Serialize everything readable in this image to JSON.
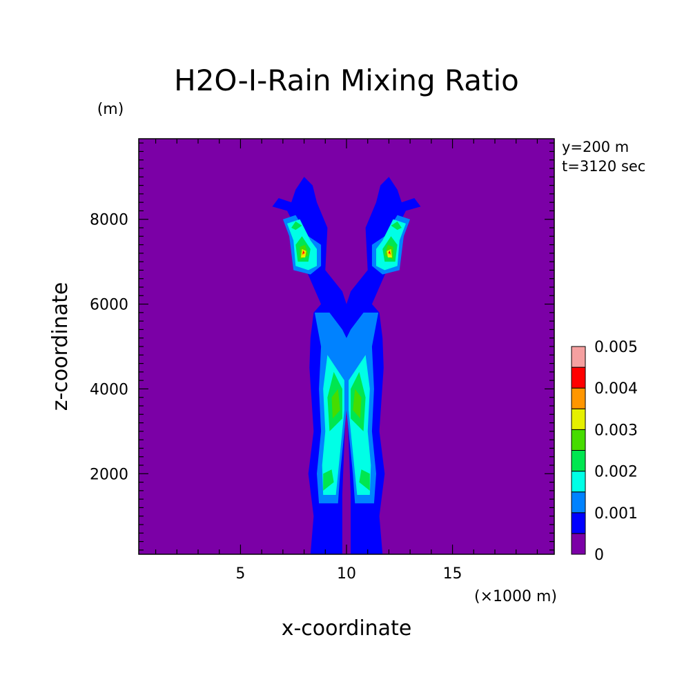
{
  "chart_data": {
    "type": "heatmap",
    "title": "H2O-I-Rain Mixing Ratio",
    "ylabel": "z-coordinate",
    "yunit": "(m)",
    "xlabel": "x-coordinate",
    "xunit": "(×1000 m)",
    "annotations": [
      "y=200 m",
      "t=3120 sec"
    ],
    "xlim": [
      0.2,
      19.8
    ],
    "ylim": [
      100,
      9900
    ],
    "xticks": [
      {
        "value": 5,
        "label": "5"
      },
      {
        "value": 10,
        "label": "10"
      },
      {
        "value": 15,
        "label": "15"
      }
    ],
    "yticks": [
      {
        "value": 2000,
        "label": "2000"
      },
      {
        "value": 4000,
        "label": "4000"
      },
      {
        "value": 6000,
        "label": "6000"
      },
      {
        "value": 8000,
        "label": "8000"
      }
    ],
    "colorbar": {
      "levels": [
        0,
        0.0005,
        0.001,
        0.0015,
        0.002,
        0.0025,
        0.003,
        0.0035,
        0.004,
        0.0045,
        0.005
      ],
      "colors": [
        "#7b00a6",
        "#0000ff",
        "#0082ff",
        "#00ffe6",
        "#00e650",
        "#46dc00",
        "#e6f000",
        "#ff9600",
        "#ff0000",
        "#f5a0a0"
      ],
      "tick_labels": [
        {
          "value": 0,
          "label": "0"
        },
        {
          "value": 0.001,
          "label": "0.001"
        },
        {
          "value": 0.002,
          "label": "0.002"
        },
        {
          "value": 0.003,
          "label": "0.003"
        },
        {
          "value": 0.004,
          "label": "0.004"
        },
        {
          "value": 0.005,
          "label": "0.005"
        }
      ]
    },
    "background_value": 0,
    "regions": [
      {
        "level": 0.0005,
        "points": [
          [
            9.8,
            100
          ],
          [
            8.3,
            100
          ],
          [
            8.45,
            1000
          ],
          [
            8.2,
            2000
          ],
          [
            8.45,
            3000
          ],
          [
            8.25,
            4500
          ],
          [
            8.3,
            5200
          ],
          [
            8.45,
            5800
          ],
          [
            8.8,
            6000
          ],
          [
            8.1,
            6800
          ],
          [
            7.7,
            7700
          ],
          [
            7.2,
            8200
          ],
          [
            6.5,
            8300
          ],
          [
            6.8,
            8500
          ],
          [
            7.4,
            8400
          ],
          [
            7.6,
            8700
          ],
          [
            8.0,
            9000
          ],
          [
            8.4,
            8800
          ],
          [
            8.6,
            8400
          ],
          [
            9.1,
            7800
          ],
          [
            9.0,
            6800
          ],
          [
            9.8,
            6300
          ],
          [
            10.0,
            6000
          ],
          [
            10.0,
            4000
          ],
          [
            9.8,
            1500
          ]
        ]
      },
      {
        "level": 0.0005,
        "points": [
          [
            10.2,
            100
          ],
          [
            11.7,
            100
          ],
          [
            11.55,
            1000
          ],
          [
            11.8,
            2000
          ],
          [
            11.55,
            3000
          ],
          [
            11.75,
            4500
          ],
          [
            11.7,
            5200
          ],
          [
            11.55,
            5800
          ],
          [
            11.2,
            6000
          ],
          [
            11.9,
            6800
          ],
          [
            12.3,
            7700
          ],
          [
            12.8,
            8200
          ],
          [
            13.5,
            8300
          ],
          [
            13.2,
            8500
          ],
          [
            12.6,
            8400
          ],
          [
            12.4,
            8700
          ],
          [
            12.0,
            9000
          ],
          [
            11.6,
            8800
          ],
          [
            11.4,
            8400
          ],
          [
            10.9,
            7800
          ],
          [
            11.0,
            6800
          ],
          [
            10.2,
            6300
          ],
          [
            10.0,
            6000
          ],
          [
            10.0,
            4000
          ],
          [
            10.2,
            1500
          ]
        ]
      },
      {
        "level": 0.001,
        "points": [
          [
            9.6,
            1300
          ],
          [
            8.7,
            1300
          ],
          [
            8.6,
            2000
          ],
          [
            8.8,
            3000
          ],
          [
            8.7,
            4000
          ],
          [
            8.8,
            5000
          ],
          [
            8.5,
            5800
          ],
          [
            9.2,
            5800
          ],
          [
            9.8,
            5400
          ],
          [
            10.0,
            5200
          ],
          [
            10.0,
            3500
          ],
          [
            9.7,
            2000
          ]
        ]
      },
      {
        "level": 0.001,
        "points": [
          [
            10.4,
            1300
          ],
          [
            11.3,
            1300
          ],
          [
            11.4,
            2000
          ],
          [
            11.2,
            3000
          ],
          [
            11.3,
            4000
          ],
          [
            11.2,
            5000
          ],
          [
            11.5,
            5800
          ],
          [
            10.8,
            5800
          ],
          [
            10.2,
            5400
          ],
          [
            10.0,
            5200
          ],
          [
            10.0,
            3500
          ],
          [
            10.3,
            2000
          ]
        ]
      },
      {
        "level": 0.001,
        "points": [
          [
            7.5,
            6800
          ],
          [
            7.3,
            7600
          ],
          [
            7.0,
            8000
          ],
          [
            7.6,
            8100
          ],
          [
            8.2,
            7600
          ],
          [
            8.8,
            7400
          ],
          [
            8.8,
            6900
          ],
          [
            8.3,
            6700
          ]
        ]
      },
      {
        "level": 0.001,
        "points": [
          [
            12.5,
            6800
          ],
          [
            12.7,
            7600
          ],
          [
            13.0,
            8000
          ],
          [
            12.4,
            8100
          ],
          [
            11.8,
            7600
          ],
          [
            11.2,
            7400
          ],
          [
            11.2,
            6900
          ],
          [
            11.7,
            6700
          ]
        ]
      },
      {
        "level": 0.0015,
        "points": [
          [
            9.5,
            1500
          ],
          [
            8.9,
            1500
          ],
          [
            8.85,
            2200
          ],
          [
            9.0,
            3000
          ],
          [
            8.9,
            4000
          ],
          [
            9.1,
            4800
          ],
          [
            9.9,
            4200
          ],
          [
            9.9,
            3500
          ],
          [
            9.6,
            2000
          ]
        ]
      },
      {
        "level": 0.0015,
        "points": [
          [
            10.5,
            1500
          ],
          [
            11.1,
            1500
          ],
          [
            11.15,
            2200
          ],
          [
            11.0,
            3000
          ],
          [
            11.1,
            4000
          ],
          [
            10.9,
            4800
          ],
          [
            10.1,
            4200
          ],
          [
            10.1,
            3500
          ],
          [
            10.4,
            2000
          ]
        ]
      },
      {
        "level": 0.0015,
        "points": [
          [
            7.6,
            6900
          ],
          [
            7.5,
            7500
          ],
          [
            7.2,
            7900
          ],
          [
            7.8,
            8000
          ],
          [
            8.3,
            7500
          ],
          [
            8.6,
            7300
          ],
          [
            8.6,
            6900
          ],
          [
            8.2,
            6800
          ]
        ]
      },
      {
        "level": 0.0015,
        "points": [
          [
            12.4,
            6900
          ],
          [
            12.5,
            7500
          ],
          [
            12.8,
            7900
          ],
          [
            12.2,
            8000
          ],
          [
            11.7,
            7500
          ],
          [
            11.4,
            7300
          ],
          [
            11.4,
            6900
          ],
          [
            11.8,
            6800
          ]
        ]
      },
      {
        "level": 0.002,
        "points": [
          [
            8.9,
            1600
          ],
          [
            8.9,
            2000
          ],
          [
            9.3,
            2100
          ],
          [
            9.4,
            1800
          ]
        ]
      },
      {
        "level": 0.002,
        "points": [
          [
            11.1,
            1600
          ],
          [
            11.1,
            2000
          ],
          [
            10.7,
            2100
          ],
          [
            10.6,
            1800
          ]
        ]
      },
      {
        "level": 0.002,
        "points": [
          [
            9.2,
            3000
          ],
          [
            9.1,
            3800
          ],
          [
            9.4,
            4400
          ],
          [
            9.8,
            4000
          ],
          [
            9.8,
            3300
          ]
        ]
      },
      {
        "level": 0.002,
        "points": [
          [
            10.8,
            3000
          ],
          [
            10.9,
            3800
          ],
          [
            10.6,
            4400
          ],
          [
            10.2,
            4000
          ],
          [
            10.2,
            3300
          ]
        ]
      },
      {
        "level": 0.002,
        "points": [
          [
            7.7,
            7000
          ],
          [
            7.6,
            7400
          ],
          [
            7.9,
            7600
          ],
          [
            8.3,
            7300
          ],
          [
            8.2,
            7000
          ]
        ]
      },
      {
        "level": 0.002,
        "points": [
          [
            12.3,
            7000
          ],
          [
            12.4,
            7400
          ],
          [
            12.1,
            7600
          ],
          [
            11.7,
            7300
          ],
          [
            11.8,
            7000
          ]
        ]
      },
      {
        "level": 0.002,
        "points": [
          [
            7.4,
            7800
          ],
          [
            7.6,
            7950
          ],
          [
            7.9,
            7850
          ],
          [
            7.6,
            7750
          ]
        ]
      },
      {
        "level": 0.002,
        "points": [
          [
            12.6,
            7800
          ],
          [
            12.4,
            7950
          ],
          [
            12.1,
            7850
          ],
          [
            12.4,
            7750
          ]
        ]
      },
      {
        "level": 0.0025,
        "points": [
          [
            9.35,
            3300
          ],
          [
            9.3,
            3800
          ],
          [
            9.6,
            4000
          ],
          [
            9.7,
            3500
          ]
        ]
      },
      {
        "level": 0.0025,
        "points": [
          [
            10.65,
            3300
          ],
          [
            10.7,
            3800
          ],
          [
            10.4,
            4000
          ],
          [
            10.3,
            3500
          ]
        ]
      },
      {
        "level": 0.0025,
        "points": [
          [
            7.8,
            7050
          ],
          [
            7.8,
            7350
          ],
          [
            8.05,
            7400
          ],
          [
            8.2,
            7150
          ]
        ]
      },
      {
        "level": 0.0025,
        "points": [
          [
            12.2,
            7050
          ],
          [
            12.2,
            7350
          ],
          [
            11.95,
            7400
          ],
          [
            11.8,
            7150
          ]
        ]
      },
      {
        "level": 0.003,
        "points": [
          [
            7.85,
            7100
          ],
          [
            7.9,
            7300
          ],
          [
            8.1,
            7250
          ],
          [
            8.05,
            7100
          ]
        ]
      },
      {
        "level": 0.003,
        "points": [
          [
            12.15,
            7100
          ],
          [
            12.1,
            7300
          ],
          [
            11.9,
            7250
          ],
          [
            11.95,
            7100
          ]
        ]
      },
      {
        "level": 0.0035,
        "points": [
          [
            7.9,
            7150
          ],
          [
            7.95,
            7280
          ],
          [
            8.05,
            7200
          ]
        ]
      },
      {
        "level": 0.0035,
        "points": [
          [
            12.1,
            7150
          ],
          [
            12.05,
            7280
          ],
          [
            11.95,
            7200
          ]
        ]
      },
      {
        "level": 0.004,
        "points": [
          [
            7.92,
            7180
          ],
          [
            7.97,
            7260
          ],
          [
            8.02,
            7210
          ]
        ]
      },
      {
        "level": 0.004,
        "points": [
          [
            12.08,
            7180
          ],
          [
            12.03,
            7260
          ],
          [
            11.98,
            7210
          ]
        ]
      }
    ]
  }
}
